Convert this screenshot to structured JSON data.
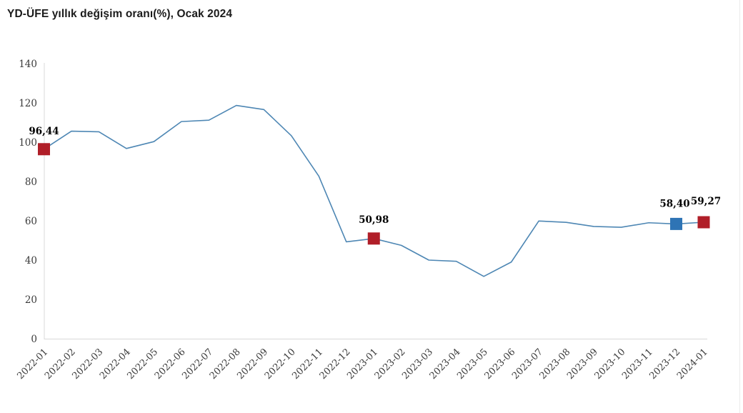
{
  "title": "YD-ÜFE yıllık değişim oranı(%), Ocak 2024",
  "colors": {
    "line": "#4e87b4",
    "marker_red": "#b01e28",
    "marker_blue": "#2e74b5",
    "axis": "#d9d9d9",
    "tick_text": "#3a3a3a",
    "label_text": "#000000"
  },
  "chart_data": {
    "type": "line",
    "title": "YD-ÜFE yıllık değişim oranı(%), Ocak 2024",
    "xlabel": "",
    "ylabel": "",
    "ylim": [
      0,
      140
    ],
    "yticks": [
      0,
      20,
      40,
      60,
      80,
      100,
      120,
      140
    ],
    "grid": false,
    "legend_position": "none",
    "categories": [
      "2022-01",
      "2022-02",
      "2022-03",
      "2022-04",
      "2022-05",
      "2022-06",
      "2022-07",
      "2022-08",
      "2022-09",
      "2022-10",
      "2022-11",
      "2022-12",
      "2023-01",
      "2023-02",
      "2023-03",
      "2023-04",
      "2023-05",
      "2023-06",
      "2023-07",
      "2023-08",
      "2023-09",
      "2023-10",
      "2023-11",
      "2023-12",
      "2024-01"
    ],
    "series": [
      {
        "name": "YD-ÜFE yıllık değişim oranı (%)",
        "values": [
          96.44,
          105.6,
          105.3,
          96.8,
          100.3,
          110.5,
          111.2,
          118.7,
          116.6,
          103.3,
          82.7,
          49.3,
          50.98,
          47.5,
          40.0,
          39.4,
          31.7,
          39.0,
          59.9,
          59.2,
          57.1,
          56.7,
          59.0,
          58.4,
          59.27
        ]
      }
    ],
    "labeled_points": [
      {
        "index": 0,
        "category": "2022-01",
        "label": "96,44",
        "marker_color": "#b01e28"
      },
      {
        "index": 12,
        "category": "2023-01",
        "label": "50,98",
        "marker_color": "#b01e28"
      },
      {
        "index": 23,
        "category": "2023-12",
        "label": "58,40",
        "marker_color": "#2e74b5"
      },
      {
        "index": 24,
        "category": "2024-01",
        "label": "59,27",
        "marker_color": "#b01e28"
      }
    ]
  }
}
